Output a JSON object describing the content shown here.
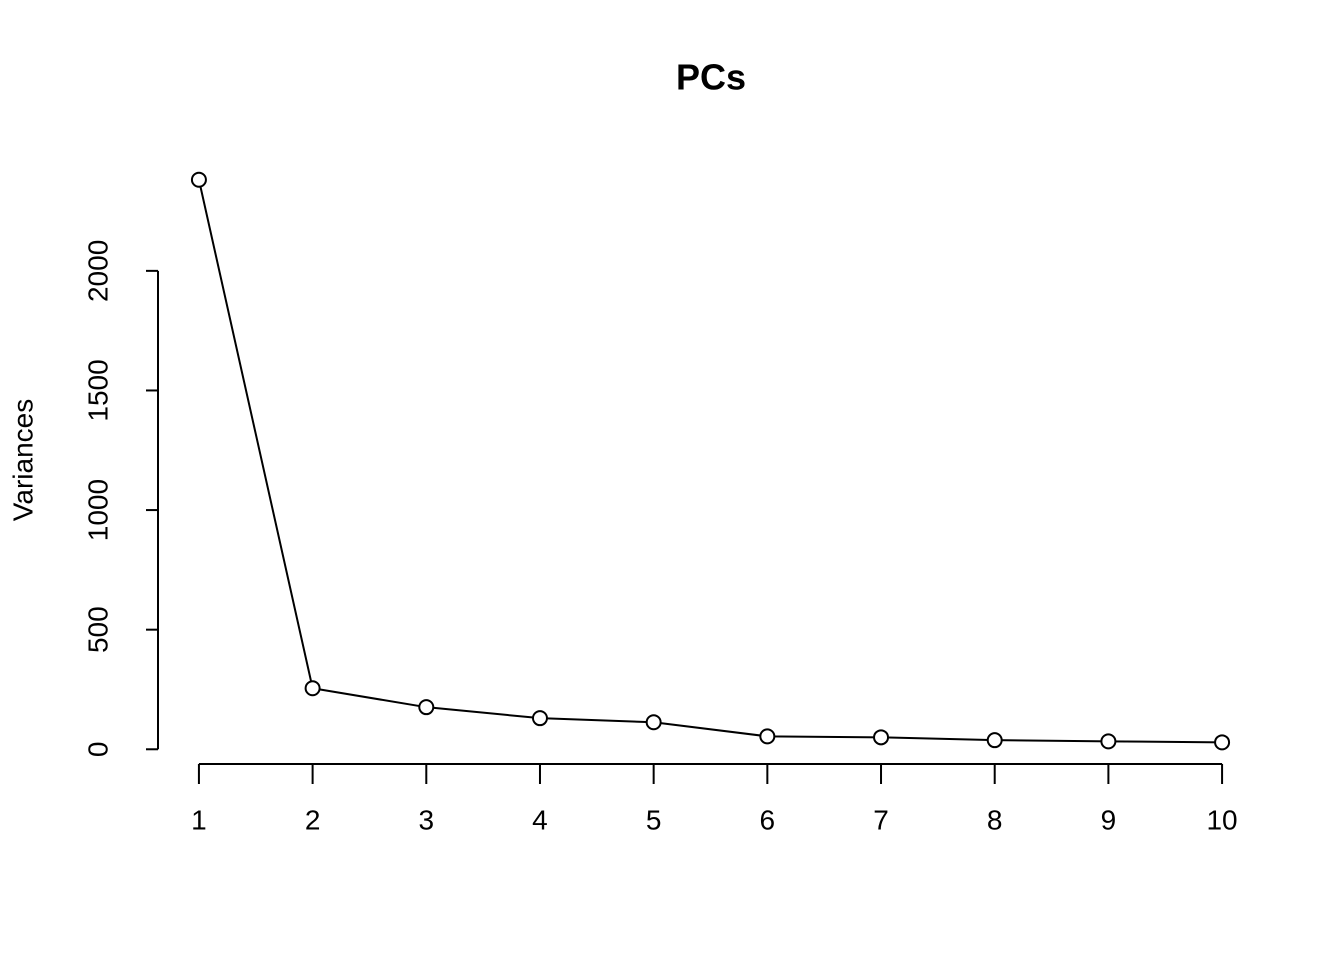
{
  "chart_data": {
    "type": "line",
    "title": "PCs",
    "y_label": "Variances",
    "x": [
      1,
      2,
      3,
      4,
      5,
      6,
      7,
      8,
      9,
      10
    ],
    "values": [
      2381,
      255,
      176,
      130,
      113,
      54,
      50,
      38,
      33,
      29
    ],
    "color": "#000000",
    "xlim": [
      0.64,
      10.36
    ],
    "xticks": [
      1,
      2,
      3,
      4,
      5,
      6,
      7,
      8,
      9,
      10
    ],
    "ylim": [
      -95,
      2476
    ],
    "yticks": [
      0,
      500,
      1000,
      1500,
      2000
    ],
    "grid": false
  }
}
